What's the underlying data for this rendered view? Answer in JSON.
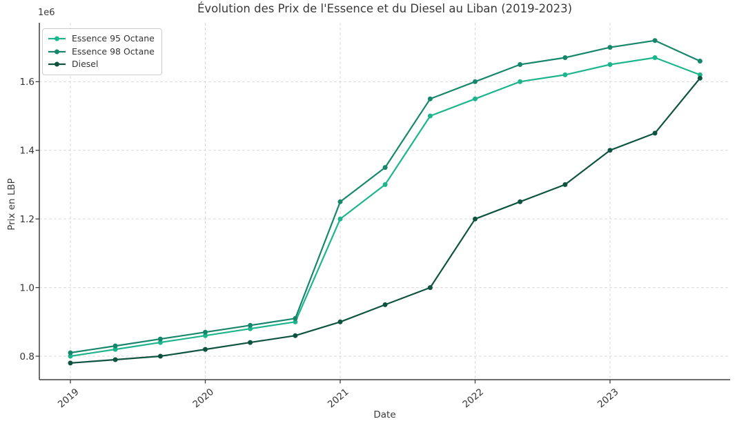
{
  "chart_data": {
    "type": "line",
    "title": "Évolution des Prix de l'Essence et du Diesel au Liban (2019-2023)",
    "xlabel": "Date",
    "ylabel": "Prix en LBP",
    "y_offset_text": "1e6",
    "grid": true,
    "grid_style": "dashed",
    "legend_position": "upper left",
    "x_ticks": [
      2019,
      2020,
      2021,
      2022,
      2023
    ],
    "x_tick_labels": [
      "2019",
      "2020",
      "2021",
      "2022",
      "2023"
    ],
    "y_ticks_1e6": [
      0.8,
      1.0,
      1.2,
      1.4,
      1.6
    ],
    "y_tick_labels": [
      "0.8",
      "1.0",
      "1.2",
      "1.4",
      "1.6"
    ],
    "xlim_years": [
      2018.77,
      2023.9
    ],
    "ylim_lbp": [
      733000,
      1772000
    ],
    "x_years": [
      2019.0,
      2019.333,
      2019.667,
      2020.0,
      2020.333,
      2020.667,
      2021.0,
      2021.333,
      2021.667,
      2022.0,
      2022.333,
      2022.667,
      2023.0,
      2023.333,
      2023.667
    ],
    "series": [
      {
        "name": "Essence 95 Octane",
        "color": "#1db58c",
        "values_lbp": [
          800000,
          820000,
          840000,
          860000,
          880000,
          900000,
          1200000,
          1300000,
          1500000,
          1550000,
          1600000,
          1620000,
          1650000,
          1670000,
          1620000
        ]
      },
      {
        "name": "Essence 98 Octane",
        "color": "#17876c",
        "values_lbp": [
          810000,
          830000,
          850000,
          870000,
          890000,
          910000,
          1250000,
          1350000,
          1550000,
          1600000,
          1650000,
          1670000,
          1700000,
          1720000,
          1660000
        ]
      },
      {
        "name": "Diesel",
        "color": "#0e5340",
        "values_lbp": [
          780000,
          790000,
          800000,
          820000,
          840000,
          860000,
          900000,
          950000,
          1000000,
          1200000,
          1250000,
          1300000,
          1400000,
          1450000,
          1610000
        ]
      }
    ],
    "style": {
      "grid_color": "#d9d9d9",
      "spine_color": "#3d3d3d",
      "text_color": "#333333",
      "background": "#ffffff"
    }
  }
}
